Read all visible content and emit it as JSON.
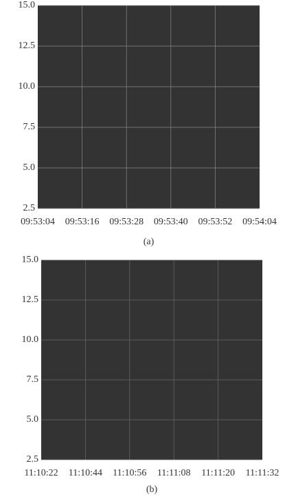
{
  "chart_data": [
    {
      "type": "line",
      "caption": "(a)",
      "x": [
        "09:53:04",
        "09:53:16",
        "09:53:28",
        "09:53:40",
        "09:53:52",
        "09:54:04"
      ],
      "ylim": [
        2.5,
        15.0
      ],
      "yticks": [
        2.5,
        {
          "value": 5.0,
          "label": "5.0"
        },
        7.5,
        {
          "value": 10.0,
          "label": "10.0"
        },
        12.5,
        {
          "value": 15.0,
          "label": "15.0"
        }
      ],
      "grid": true,
      "background": "#333333",
      "grid_color": "#8a8a8a"
    },
    {
      "type": "line",
      "caption": "(b)",
      "x": [
        "11:10:22",
        "11:10:44",
        "11:10:56",
        "11:11:08",
        "11:11:20",
        "11:11:32"
      ],
      "ylim": [
        2.5,
        15.0
      ],
      "yticks": [
        2.5,
        {
          "value": 5.0,
          "label": "5.0"
        },
        7.5,
        {
          "value": 10.0,
          "label": "10.0"
        },
        12.5,
        {
          "value": 15.0,
          "label": "15.0"
        }
      ],
      "grid": true,
      "background": "#333333",
      "grid_color": "#6a6a6a"
    }
  ]
}
